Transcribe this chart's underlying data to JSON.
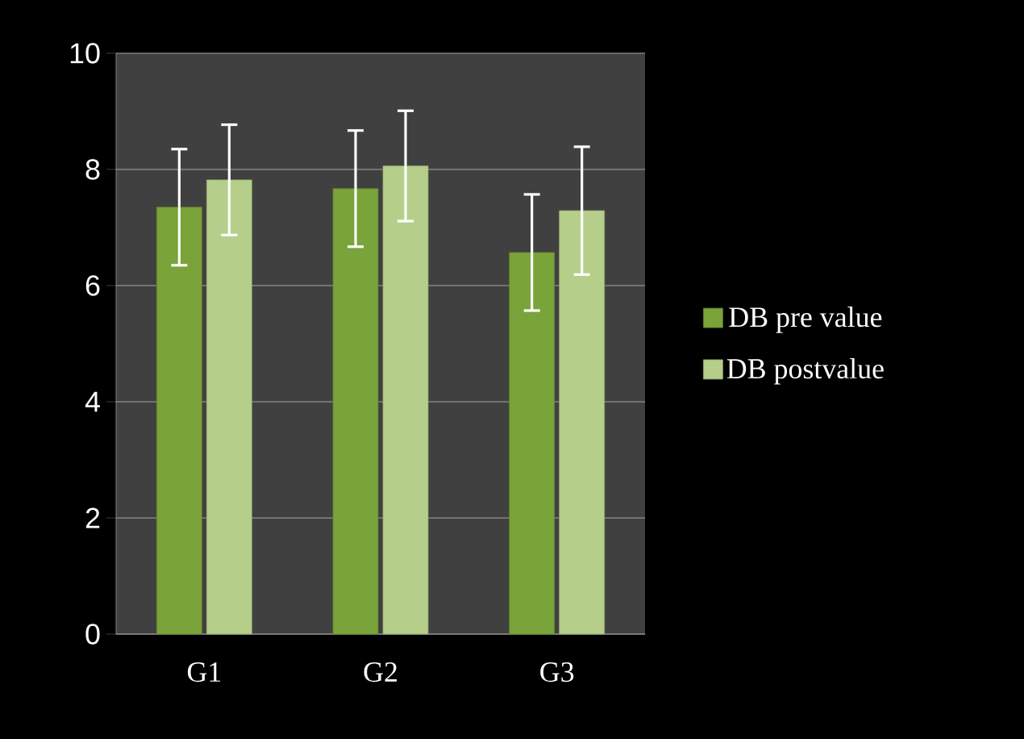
{
  "chart_data": {
    "type": "bar",
    "categories": [
      "G1",
      "G2",
      "G3"
    ],
    "series": [
      {
        "name": "DB pre value",
        "color": "#7aa33a",
        "values": [
          7.35,
          7.67,
          6.57
        ],
        "errors": [
          1.0,
          1.0,
          1.0
        ]
      },
      {
        "name": "DB postvalue",
        "color": "#b5cf8a",
        "values": [
          7.82,
          8.06,
          7.29
        ],
        "errors": [
          0.95,
          0.95,
          1.1
        ]
      }
    ],
    "ylim": [
      0,
      10
    ],
    "yticks": [
      0,
      2,
      4,
      6,
      8,
      10
    ],
    "grid": "y",
    "legend": "right"
  }
}
